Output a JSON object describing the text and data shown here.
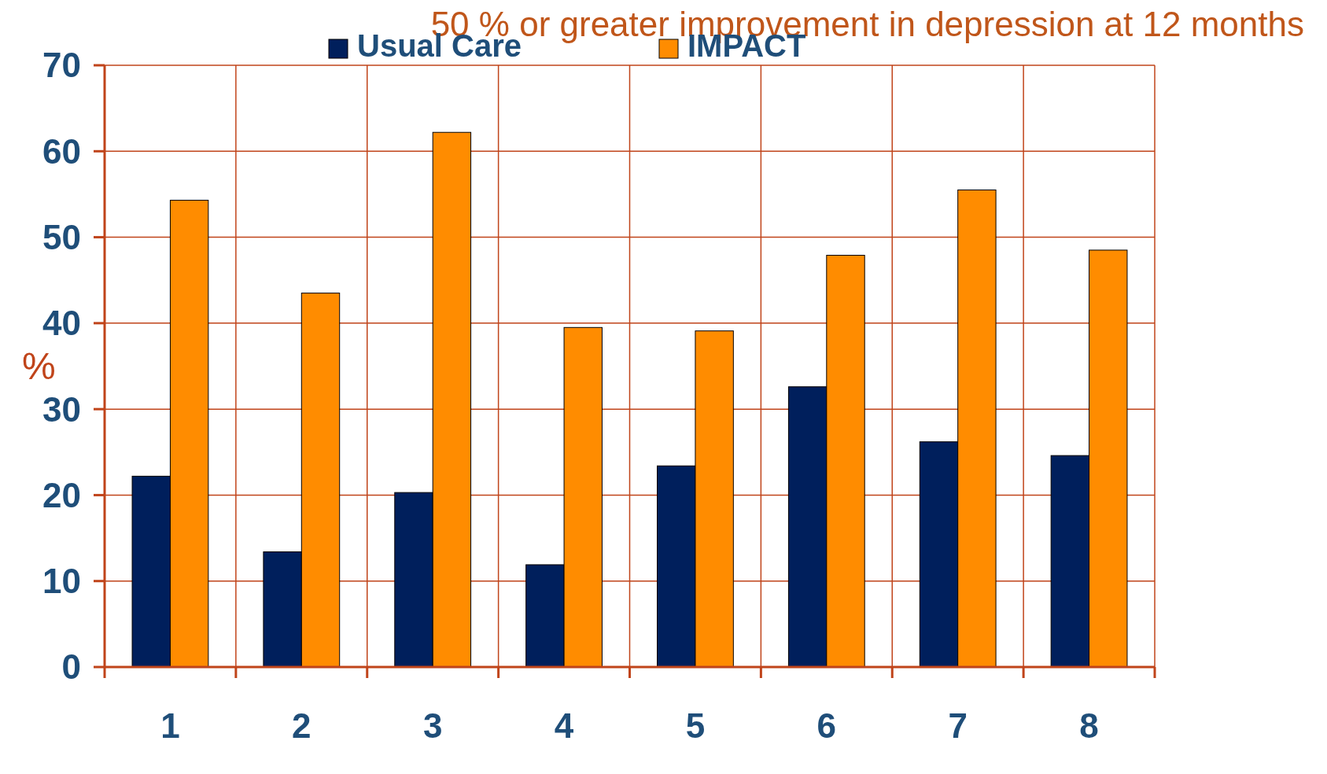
{
  "chart_data": {
    "type": "bar",
    "title": "50 % or greater improvement in depression at 12 months",
    "ylabel": "%",
    "categories": [
      "1",
      "2",
      "3",
      "4",
      "5",
      "6",
      "7",
      "8"
    ],
    "series": [
      {
        "name": "Usual Care",
        "color": "#001f5c",
        "values": [
          22.2,
          13.4,
          20.3,
          11.9,
          23.4,
          32.6,
          26.2,
          24.6
        ]
      },
      {
        "name": "IMPACT",
        "color": "#ff8c00",
        "values": [
          54.3,
          43.5,
          62.2,
          39.5,
          39.1,
          47.9,
          55.5,
          48.5
        ]
      }
    ],
    "ylim": [
      0,
      70
    ],
    "yticks": [
      0,
      10,
      20,
      30,
      40,
      50,
      60,
      70
    ],
    "grid": true,
    "legend": "top"
  }
}
